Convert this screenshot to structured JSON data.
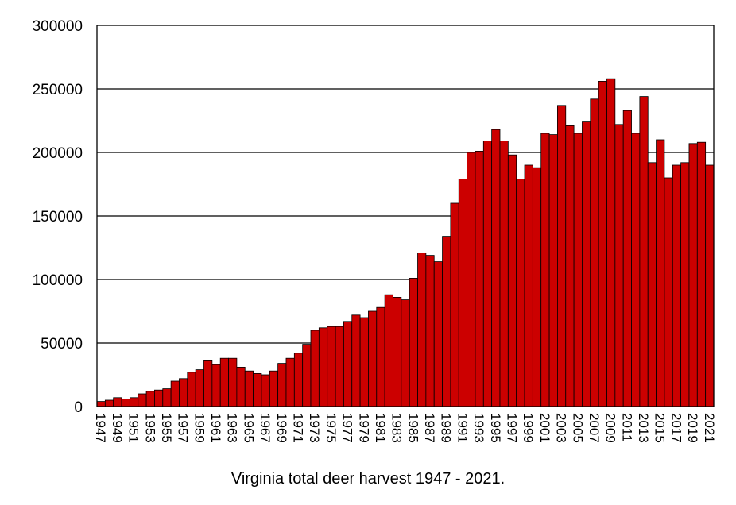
{
  "chart_data": {
    "type": "bar",
    "title": "",
    "caption": "Virginia total deer harvest 1947 - 2021.",
    "xlabel": "",
    "ylabel": "",
    "ylim": [
      0,
      300000
    ],
    "yticks": [
      0,
      50000,
      100000,
      150000,
      200000,
      250000,
      300000
    ],
    "ytick_labels": [
      "0",
      "50000",
      "100000",
      "150000",
      "200000",
      "250000",
      "300000"
    ],
    "grid": true,
    "legend": "none",
    "bar_color": "#CC0000",
    "bar_edge_color": "#000000",
    "xtick_labels": [
      "1947",
      "1949",
      "1951",
      "1953",
      "1955",
      "1957",
      "1959",
      "1961",
      "1963",
      "1965",
      "1967",
      "1969",
      "1971",
      "1973",
      "1975",
      "1977",
      "1979",
      "1981",
      "1983",
      "1985",
      "1987",
      "1989",
      "1991",
      "1993",
      "1995",
      "1997",
      "1999",
      "2001",
      "2003",
      "2005",
      "2007",
      "2009",
      "2011",
      "2013",
      "2015",
      "2017",
      "2019",
      "2021"
    ],
    "categories": [
      "1947",
      "1948",
      "1949",
      "1950",
      "1951",
      "1952",
      "1953",
      "1954",
      "1955",
      "1956",
      "1957",
      "1958",
      "1959",
      "1960",
      "1961",
      "1962",
      "1963",
      "1964",
      "1965",
      "1966",
      "1967",
      "1968",
      "1969",
      "1970",
      "1971",
      "1972",
      "1973",
      "1974",
      "1975",
      "1976",
      "1977",
      "1978",
      "1979",
      "1980",
      "1981",
      "1982",
      "1983",
      "1984",
      "1985",
      "1986",
      "1987",
      "1988",
      "1989",
      "1990",
      "1991",
      "1992",
      "1993",
      "1994",
      "1995",
      "1996",
      "1997",
      "1998",
      "1999",
      "2000",
      "2001",
      "2002",
      "2003",
      "2004",
      "2005",
      "2006",
      "2007",
      "2008",
      "2009",
      "2010",
      "2011",
      "2012",
      "2013",
      "2014",
      "2015",
      "2016",
      "2017",
      "2018",
      "2019",
      "2020",
      "2021"
    ],
    "values": [
      4000,
      5000,
      7000,
      6000,
      7000,
      10000,
      12000,
      13000,
      14000,
      20000,
      22000,
      27000,
      29000,
      36000,
      33000,
      38000,
      38000,
      31000,
      28000,
      26000,
      25000,
      28000,
      34000,
      38000,
      42000,
      49000,
      60000,
      62000,
      63000,
      63000,
      67000,
      72000,
      70000,
      75000,
      78000,
      88000,
      86000,
      84000,
      101000,
      121000,
      119000,
      114000,
      134000,
      160000,
      179000,
      200000,
      201000,
      209000,
      218000,
      209000,
      198000,
      179000,
      190000,
      188000,
      215000,
      214000,
      237000,
      221000,
      215000,
      224000,
      242000,
      256000,
      258000,
      222000,
      233000,
      215000,
      244000,
      192000,
      210000,
      180000,
      190000,
      192000,
      207000,
      208000,
      190000
    ]
  }
}
